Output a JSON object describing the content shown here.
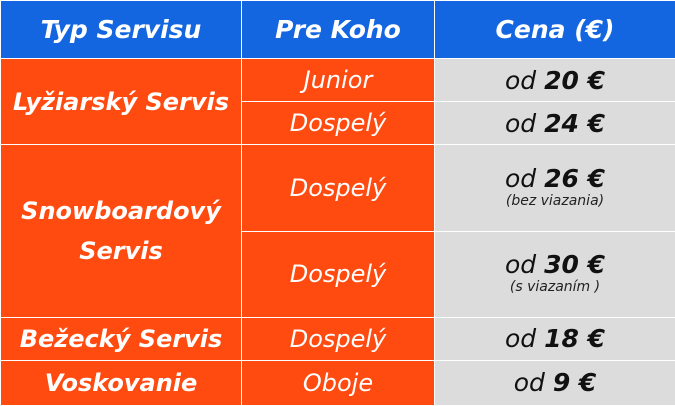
{
  "header": {
    "col1": "Typ Servisu",
    "col2": "Pre Koho",
    "col3": "Cena (€)"
  },
  "rows": [
    {
      "service": "Lyžiarský Servis",
      "who": "Junior",
      "price_prefix": "od",
      "price": "20 €",
      "note": ""
    },
    {
      "service": "",
      "who": "Dospelý",
      "price_prefix": "od",
      "price": "24 €",
      "note": ""
    },
    {
      "service": "Snowboardový Servis",
      "who": "Dospelý",
      "price_prefix": "od",
      "price": "26 €",
      "note": "(bez viazania)"
    },
    {
      "service": "",
      "who": "Dospelý",
      "price_prefix": "od",
      "price": "30 €",
      "note": "(s viazaním )"
    },
    {
      "service": "Bežecký Servis",
      "who": "Dospelý",
      "price_prefix": "od",
      "price": "18 €",
      "note": ""
    },
    {
      "service": "Voskovanie",
      "who": "Oboje",
      "price_prefix": "od",
      "price": "9 €",
      "note": ""
    }
  ],
  "colors": {
    "header_bg": "#1466e0",
    "service_bg": "#ff4a10",
    "price_bg": "#dcdcdc",
    "text_light": "#ffffff",
    "text_dark": "#111111"
  }
}
